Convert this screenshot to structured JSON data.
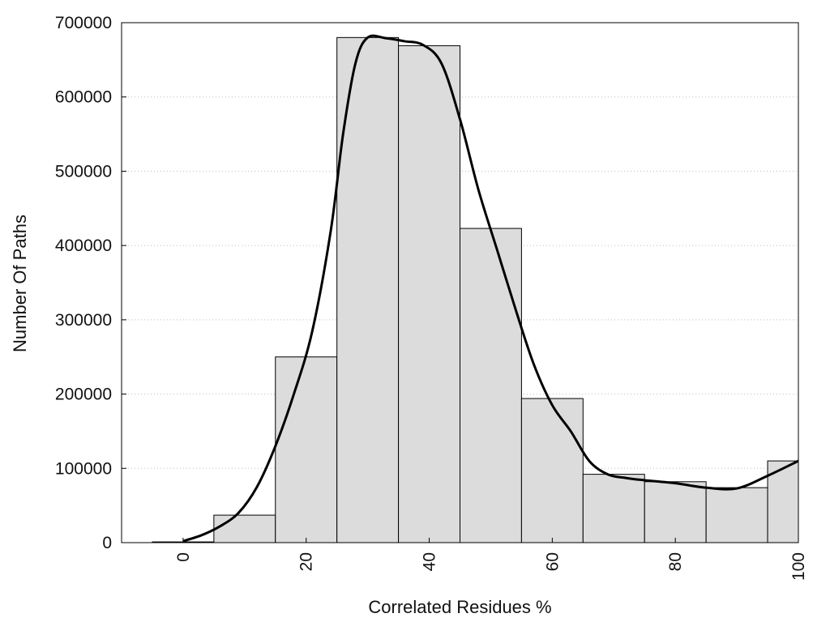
{
  "chart_data": {
    "type": "bar",
    "title": "",
    "xlabel": "Correlated Residues %",
    "ylabel": "Number Of Paths",
    "xlim": [
      -10,
      100
    ],
    "ylim": [
      0,
      700000
    ],
    "xticks": [
      0,
      20,
      40,
      60,
      80,
      100
    ],
    "yticks": [
      0,
      100000,
      200000,
      300000,
      400000,
      500000,
      600000,
      700000
    ],
    "grid": "horizontal dotted",
    "bin_width": 10,
    "bins": [
      {
        "center": 0,
        "value": 1000
      },
      {
        "center": 10,
        "value": 37000
      },
      {
        "center": 20,
        "value": 250000
      },
      {
        "center": 30,
        "value": 680000
      },
      {
        "center": 40,
        "value": 669000
      },
      {
        "center": 50,
        "value": 423000
      },
      {
        "center": 60,
        "value": 194000
      },
      {
        "center": 70,
        "value": 92000
      },
      {
        "center": 80,
        "value": 82000
      },
      {
        "center": 90,
        "value": 74000
      },
      {
        "center": 100,
        "value": 110000
      }
    ],
    "bar_color": "#dcdcdc",
    "bar_edge_color": "#000000",
    "density_curve": {
      "x": [
        0,
        3,
        6,
        9,
        12,
        15,
        18,
        21,
        24,
        26,
        28,
        30,
        33,
        36,
        39,
        42,
        45,
        48,
        51,
        54,
        57,
        60,
        63,
        66,
        69,
        72,
        75,
        80,
        85,
        90,
        95,
        100
      ],
      "y": [
        2000,
        10000,
        22000,
        40000,
        75000,
        130000,
        200000,
        285000,
        420000,
        550000,
        645000,
        680000,
        679000,
        675000,
        670000,
        645000,
        570000,
        475000,
        395000,
        315000,
        240000,
        185000,
        150000,
        110000,
        92000,
        87000,
        84000,
        80000,
        74000,
        73000,
        90000,
        110000
      ]
    },
    "curve_color": "#000000"
  }
}
